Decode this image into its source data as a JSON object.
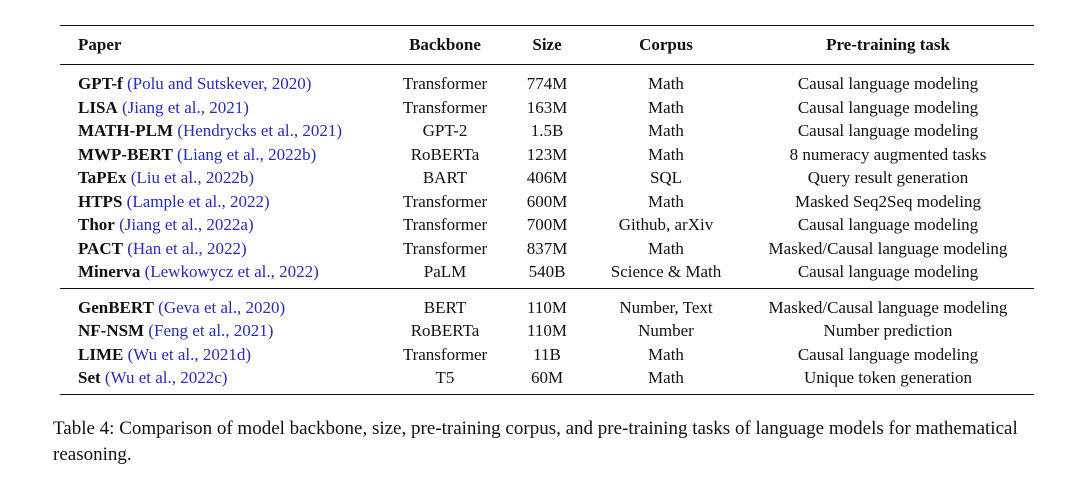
{
  "table": {
    "headers": {
      "paper": "Paper",
      "backbone": "Backbone",
      "size": "Size",
      "corpus": "Corpus",
      "task": "Pre-training task"
    },
    "group1": [
      {
        "name": "GPT-f",
        "cite": "(Polu and Sutskever, 2020)",
        "backbone": "Transformer",
        "size": "774M",
        "corpus": "Math",
        "task": "Causal language modeling"
      },
      {
        "name": "LISA",
        "cite": "(Jiang et al., 2021)",
        "backbone": "Transformer",
        "size": "163M",
        "corpus": "Math",
        "task": "Causal language modeling"
      },
      {
        "name": "MATH-PLM",
        "cite": "(Hendrycks et al., 2021)",
        "backbone": "GPT-2",
        "size": "1.5B",
        "corpus": "Math",
        "task": "Causal language modeling"
      },
      {
        "name": "MWP-BERT",
        "cite": "(Liang et al., 2022b)",
        "backbone": "RoBERTa",
        "size": "123M",
        "corpus": "Math",
        "task": "8 numeracy augmented tasks"
      },
      {
        "name": "TaPEx",
        "cite": "(Liu et al., 2022b)",
        "backbone": "BART",
        "size": "406M",
        "corpus": "SQL",
        "task": "Query result generation"
      },
      {
        "name": "HTPS",
        "cite": "(Lample et al., 2022)",
        "backbone": "Transformer",
        "size": "600M",
        "corpus": "Math",
        "task": "Masked Seq2Seq modeling"
      },
      {
        "name": "Thor",
        "cite": "(Jiang et al., 2022a)",
        "backbone": "Transformer",
        "size": "700M",
        "corpus": "Github, arXiv",
        "task": "Causal language modeling"
      },
      {
        "name": "PACT",
        "cite": "(Han et al., 2022)",
        "backbone": "Transformer",
        "size": "837M",
        "corpus": "Math",
        "task": "Masked/Causal language modeling"
      },
      {
        "name": "Minerva",
        "cite": "(Lewkowycz et al., 2022)",
        "backbone": "PaLM",
        "size": "540B",
        "corpus": "Science & Math",
        "task": "Causal language modeling"
      }
    ],
    "group2": [
      {
        "name": "GenBERT",
        "cite": "(Geva et al., 2020)",
        "backbone": "BERT",
        "size": "110M",
        "corpus": "Number, Text",
        "task": "Masked/Causal language modeling"
      },
      {
        "name": "NF-NSM",
        "cite": "(Feng et al., 2021)",
        "backbone": "RoBERTa",
        "size": "110M",
        "corpus": "Number",
        "task": "Number prediction"
      },
      {
        "name": "LIME",
        "cite": "(Wu et al., 2021d)",
        "backbone": "Transformer",
        "size": "11B",
        "corpus": "Math",
        "task": "Causal language modeling"
      },
      {
        "name": "Set",
        "cite": "(Wu et al., 2022c)",
        "backbone": "T5",
        "size": "60M",
        "corpus": "Math",
        "task": "Unique token generation"
      }
    ]
  },
  "caption": "Table 4: Comparison of model backbone, size, pre-training corpus, and pre-training tasks of language models for mathematical reasoning."
}
